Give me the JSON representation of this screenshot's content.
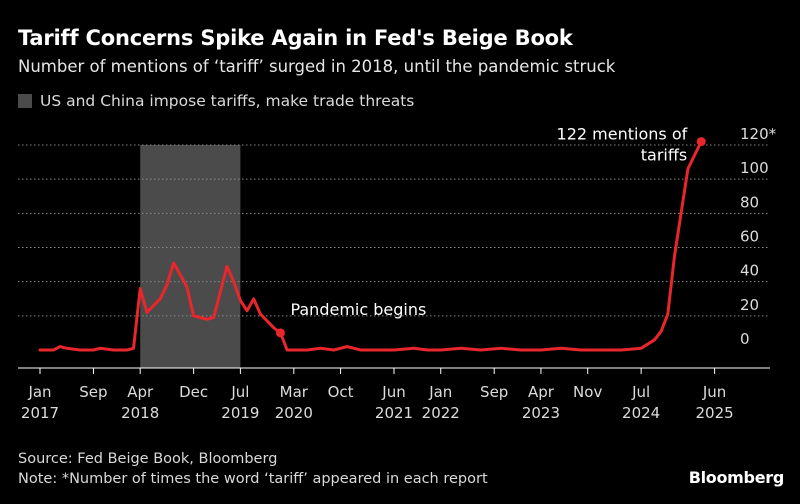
{
  "chart_data": {
    "type": "line",
    "title": "Tariff Concerns Spike Again in Fed's Beige Book",
    "subtitle": "Number of mentions of ‘tariff’ surged in 2018, until the pandemic struck",
    "legend": [
      {
        "label": "US and China impose tariffs, make trade threats",
        "color": "#4b4b4b"
      }
    ],
    "highlight_range": [
      "2018-04",
      "2019-07"
    ],
    "x_ticks": [
      {
        "date": "2017-01",
        "label": "Jan",
        "year": "2017"
      },
      {
        "date": "2017-09",
        "label": "Sep",
        "year": ""
      },
      {
        "date": "2018-04",
        "label": "Apr",
        "year": "2018"
      },
      {
        "date": "2018-12",
        "label": "Dec",
        "year": ""
      },
      {
        "date": "2019-07",
        "label": "Jul",
        "year": "2019"
      },
      {
        "date": "2020-03",
        "label": "Mar",
        "year": "2020"
      },
      {
        "date": "2020-10",
        "label": "Oct",
        "year": ""
      },
      {
        "date": "2021-06",
        "label": "Jun",
        "year": "2021"
      },
      {
        "date": "2022-01",
        "label": "Jan",
        "year": "2022"
      },
      {
        "date": "2022-09",
        "label": "Sep",
        "year": ""
      },
      {
        "date": "2023-04",
        "label": "Apr",
        "year": "2023"
      },
      {
        "date": "2023-11",
        "label": "Nov",
        "year": ""
      },
      {
        "date": "2024-07",
        "label": "Jul",
        "year": "2024"
      },
      {
        "date": "2025-06",
        "label": "Jun",
        "year": "2025"
      }
    ],
    "y_ticks": [
      0,
      20,
      40,
      60,
      80,
      100,
      120
    ],
    "y_top_label": "120*",
    "ylim": [
      0,
      120
    ],
    "grid": true,
    "series": [
      {
        "color": "#e8262b",
        "points": [
          [
            "2017-01",
            0
          ],
          [
            "2017-03",
            0
          ],
          [
            "2017-04",
            2
          ],
          [
            "2017-05",
            1
          ],
          [
            "2017-07",
            0
          ],
          [
            "2017-09",
            0
          ],
          [
            "2017-10",
            1
          ],
          [
            "2017-12",
            0
          ],
          [
            "2018-02",
            0
          ],
          [
            "2018-03",
            1
          ],
          [
            "2018-04",
            36
          ],
          [
            "2018-05",
            22
          ],
          [
            "2018-07",
            30
          ],
          [
            "2018-08",
            38
          ],
          [
            "2018-09",
            51
          ],
          [
            "2018-10",
            44
          ],
          [
            "2018-11",
            37
          ],
          [
            "2018-12",
            20
          ],
          [
            "2019-01",
            19
          ],
          [
            "2019-02",
            18
          ],
          [
            "2019-03",
            19
          ],
          [
            "2019-05",
            49
          ],
          [
            "2019-06",
            40
          ],
          [
            "2019-07",
            29
          ],
          [
            "2019-08",
            23
          ],
          [
            "2019-09",
            30
          ],
          [
            "2019-10",
            21
          ],
          [
            "2019-12",
            13
          ],
          [
            "2020-01",
            10
          ],
          [
            "2020-02",
            0
          ],
          [
            "2020-03",
            0
          ],
          [
            "2020-05",
            0
          ],
          [
            "2020-07",
            1
          ],
          [
            "2020-09",
            0
          ],
          [
            "2020-11",
            2
          ],
          [
            "2021-01",
            0
          ],
          [
            "2021-06",
            0
          ],
          [
            "2021-09",
            1
          ],
          [
            "2021-11",
            0
          ],
          [
            "2022-01",
            0
          ],
          [
            "2022-04",
            1
          ],
          [
            "2022-07",
            0
          ],
          [
            "2022-10",
            1
          ],
          [
            "2023-01",
            0
          ],
          [
            "2023-04",
            0
          ],
          [
            "2023-07",
            1
          ],
          [
            "2023-10",
            0
          ],
          [
            "2024-01",
            0
          ],
          [
            "2024-04",
            0
          ],
          [
            "2024-07",
            1
          ],
          [
            "2024-09",
            6
          ],
          [
            "2024-10",
            11
          ],
          [
            "2024-11",
            21
          ],
          [
            "2024-12",
            55
          ],
          [
            "2025-02",
            106
          ],
          [
            "2025-04",
            122
          ]
        ]
      }
    ],
    "annotations": [
      {
        "id": "pandemic",
        "text": "Pandemic begins",
        "date": "2020-01",
        "value": 10
      },
      {
        "id": "peak",
        "text_line1": "122 mentions of",
        "text_line2": "tariffs",
        "date": "2025-04",
        "value": 122
      }
    ]
  },
  "footer": {
    "source": "Source: Fed Beige Book, Bloomberg",
    "note": "Note: *Number of times the word ‘tariff’ appeared in each report"
  },
  "brand": "Bloomberg"
}
